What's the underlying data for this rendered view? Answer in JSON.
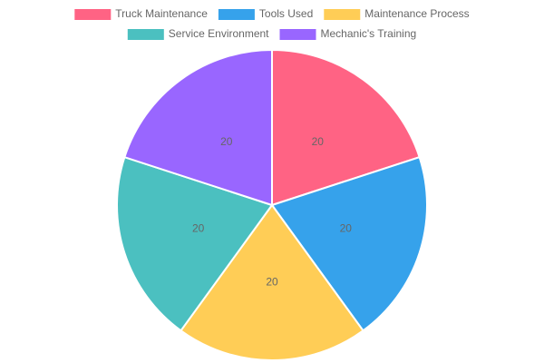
{
  "chart_data": {
    "type": "pie",
    "categories": [
      "Truck Maintenance",
      "Tools Used",
      "Maintenance Process",
      "Service Environment",
      "Mechanic's Training"
    ],
    "values": [
      20,
      20,
      20,
      20,
      20
    ],
    "colors": [
      "#ff6384",
      "#36a2eb",
      "#ffcd56",
      "#4bc0c0",
      "#9966ff"
    ],
    "legend": "top"
  }
}
